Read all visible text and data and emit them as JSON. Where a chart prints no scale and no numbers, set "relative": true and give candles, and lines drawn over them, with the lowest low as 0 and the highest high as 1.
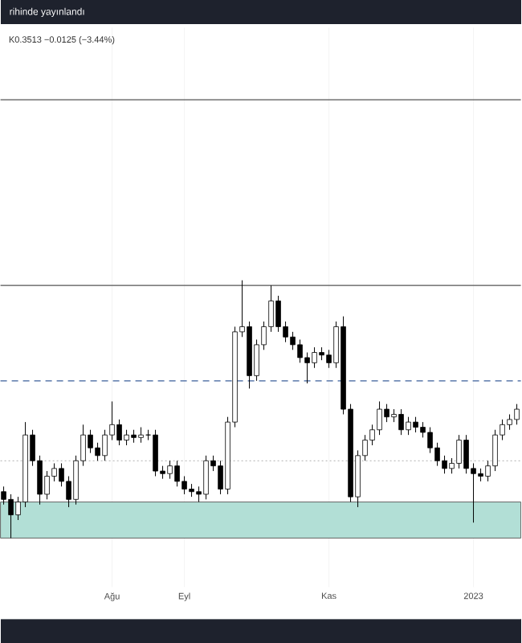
{
  "chart_data": {
    "type": "candlestick",
    "relative": true,
    "grid": true,
    "annotations": [
      "rihinde yayınlandı",
      "K0.3513  −0.0125 (−3.44%)"
    ],
    "categories": [
      null,
      null,
      null,
      null,
      null,
      null,
      null,
      null,
      null,
      null,
      null,
      null,
      null,
      null,
      null,
      "Ağu",
      null,
      null,
      null,
      null,
      null,
      null,
      null,
      null,
      null,
      "Eyl",
      null,
      null,
      null,
      null,
      null,
      null,
      null,
      null,
      null,
      null,
      null,
      null,
      null,
      null,
      null,
      null,
      null,
      null,
      null,
      "Kas",
      null,
      null,
      null,
      null,
      null,
      null,
      null,
      null,
      null,
      null,
      null,
      null,
      null,
      null,
      null,
      null,
      null,
      null,
      null,
      "2023",
      null,
      null,
      null,
      null,
      null,
      null
    ],
    "ohlc": [
      [
        0.18,
        0.2,
        0.13,
        0.15
      ],
      [
        0.15,
        0.17,
        0.0,
        0.09
      ],
      [
        0.09,
        0.16,
        0.07,
        0.14
      ],
      [
        0.14,
        0.45,
        0.12,
        0.4
      ],
      [
        0.4,
        0.42,
        0.28,
        0.3
      ],
      [
        0.3,
        0.32,
        0.13,
        0.17
      ],
      [
        0.17,
        0.26,
        0.15,
        0.24
      ],
      [
        0.24,
        0.29,
        0.22,
        0.27
      ],
      [
        0.27,
        0.29,
        0.2,
        0.22
      ],
      [
        0.22,
        0.24,
        0.12,
        0.15
      ],
      [
        0.15,
        0.32,
        0.13,
        0.3
      ],
      [
        0.3,
        0.44,
        0.28,
        0.4
      ],
      [
        0.4,
        0.42,
        0.33,
        0.35
      ],
      [
        0.35,
        0.37,
        0.3,
        0.32
      ],
      [
        0.32,
        0.42,
        0.3,
        0.4
      ],
      [
        0.4,
        0.53,
        0.38,
        0.44
      ],
      [
        0.44,
        0.46,
        0.36,
        0.38
      ],
      [
        0.38,
        0.42,
        0.36,
        0.4
      ],
      [
        0.4,
        0.42,
        0.37,
        0.39
      ],
      [
        0.39,
        0.43,
        0.37,
        0.4
      ],
      [
        0.4,
        0.42,
        0.38,
        0.4
      ],
      [
        0.4,
        0.42,
        0.24,
        0.26
      ],
      [
        0.26,
        0.28,
        0.23,
        0.25
      ],
      [
        0.25,
        0.3,
        0.23,
        0.28
      ],
      [
        0.28,
        0.3,
        0.2,
        0.22
      ],
      [
        0.22,
        0.24,
        0.17,
        0.19
      ],
      [
        0.19,
        0.21,
        0.16,
        0.18
      ],
      [
        0.18,
        0.2,
        0.14,
        0.17
      ],
      [
        0.17,
        0.32,
        0.15,
        0.3
      ],
      [
        0.3,
        0.32,
        0.26,
        0.28
      ],
      [
        0.28,
        0.3,
        0.17,
        0.19
      ],
      [
        0.19,
        0.47,
        0.17,
        0.45
      ],
      [
        0.45,
        0.82,
        0.43,
        0.8
      ],
      [
        0.8,
        1.0,
        0.78,
        0.82
      ],
      [
        0.82,
        0.84,
        0.58,
        0.63
      ],
      [
        0.63,
        0.77,
        0.61,
        0.75
      ],
      [
        0.75,
        0.84,
        0.73,
        0.82
      ],
      [
        0.82,
        0.98,
        0.8,
        0.92
      ],
      [
        0.92,
        0.94,
        0.8,
        0.82
      ],
      [
        0.82,
        0.84,
        0.76,
        0.78
      ],
      [
        0.78,
        0.8,
        0.73,
        0.75
      ],
      [
        0.75,
        0.77,
        0.68,
        0.7
      ],
      [
        0.7,
        0.72,
        0.6,
        0.68
      ],
      [
        0.68,
        0.74,
        0.66,
        0.72
      ],
      [
        0.72,
        0.74,
        0.69,
        0.71
      ],
      [
        0.71,
        0.73,
        0.66,
        0.68
      ],
      [
        0.68,
        0.84,
        0.66,
        0.82
      ],
      [
        0.82,
        0.86,
        0.48,
        0.5
      ],
      [
        0.5,
        0.52,
        0.14,
        0.16
      ],
      [
        0.16,
        0.34,
        0.12,
        0.32
      ],
      [
        0.32,
        0.4,
        0.3,
        0.38
      ],
      [
        0.38,
        0.44,
        0.36,
        0.42
      ],
      [
        0.42,
        0.53,
        0.4,
        0.5
      ],
      [
        0.5,
        0.52,
        0.45,
        0.47
      ],
      [
        0.47,
        0.5,
        0.45,
        0.48
      ],
      [
        0.48,
        0.5,
        0.4,
        0.42
      ],
      [
        0.42,
        0.47,
        0.4,
        0.45
      ],
      [
        0.45,
        0.47,
        0.41,
        0.43
      ],
      [
        0.43,
        0.45,
        0.39,
        0.41
      ],
      [
        0.41,
        0.43,
        0.33,
        0.35
      ],
      [
        0.35,
        0.37,
        0.28,
        0.3
      ],
      [
        0.3,
        0.32,
        0.25,
        0.27
      ],
      [
        0.27,
        0.31,
        0.25,
        0.29
      ],
      [
        0.29,
        0.4,
        0.27,
        0.38
      ],
      [
        0.38,
        0.4,
        0.25,
        0.27
      ],
      [
        0.27,
        0.29,
        0.06,
        0.25
      ],
      [
        0.25,
        0.27,
        0.22,
        0.24
      ],
      [
        0.24,
        0.3,
        0.22,
        0.28
      ],
      [
        0.28,
        0.42,
        0.26,
        0.4
      ],
      [
        0.4,
        0.46,
        0.38,
        0.44
      ],
      [
        0.44,
        0.48,
        0.42,
        0.46
      ],
      [
        0.46,
        0.52,
        0.44,
        0.5
      ]
    ],
    "ref_lines": [
      {
        "axis": "y",
        "value": 1.7,
        "color": "#555555",
        "line_style": "solid"
      },
      {
        "axis": "y",
        "value": 0.98,
        "color": "#555555",
        "line_style": "solid"
      },
      {
        "axis": "y",
        "value": 0.61,
        "color": "#3b5f9a",
        "line_style": "dashed"
      },
      {
        "axis": "y",
        "value": 0.3,
        "color": "#aaaaaa",
        "line_style": "dotted"
      }
    ],
    "bands": [
      {
        "axis": "y",
        "from": 0,
        "to": 0.14,
        "color": "#b2dfd6"
      }
    ]
  }
}
